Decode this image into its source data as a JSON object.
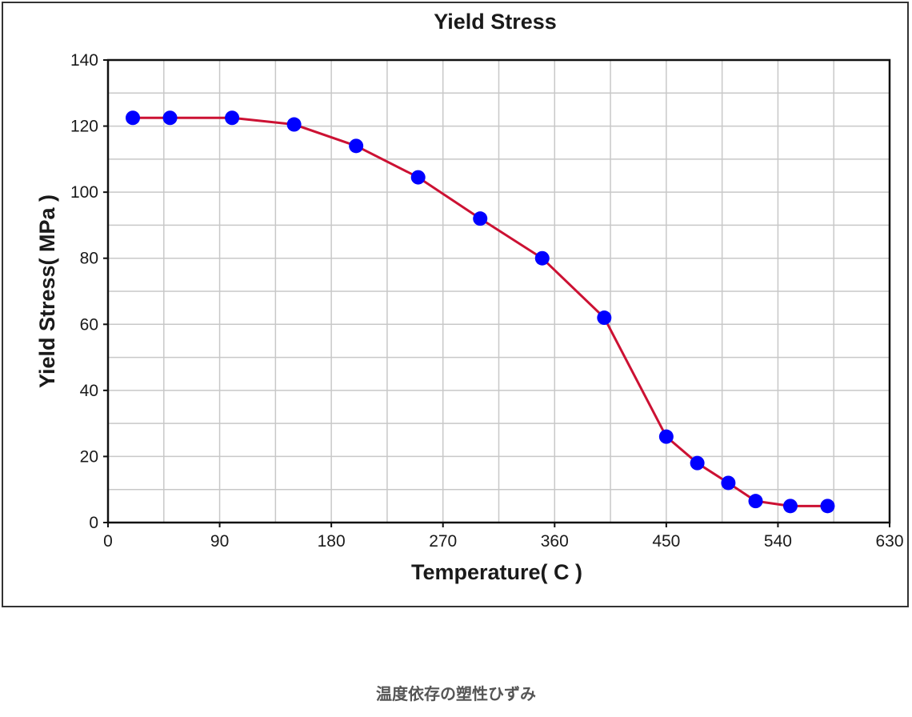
{
  "chart_data": {
    "type": "line",
    "title": "Yield Stress",
    "xlabel": "Temperature( C )",
    "ylabel": "Yield Stress( MPa )",
    "xlim": [
      0,
      630
    ],
    "ylim": [
      0,
      140
    ],
    "x_ticks": [
      "0",
      "90",
      "180",
      "270",
      "360",
      "450",
      "540",
      "630"
    ],
    "y_ticks": [
      "0",
      "20",
      "40",
      "60",
      "80",
      "100",
      "120",
      "140"
    ],
    "grid": true,
    "series": [
      {
        "color": "#cc1133",
        "marker_color": "#0000ff",
        "x": [
          20,
          50,
          100,
          150,
          200,
          250,
          300,
          350,
          400,
          450,
          475,
          500,
          522,
          550,
          580
        ],
        "y": [
          122.5,
          122.5,
          122.5,
          120.5,
          114,
          104.5,
          92,
          80,
          62,
          26,
          18,
          12,
          6.5,
          5,
          5
        ]
      }
    ]
  },
  "caption": "温度依存の塑性ひずみ"
}
